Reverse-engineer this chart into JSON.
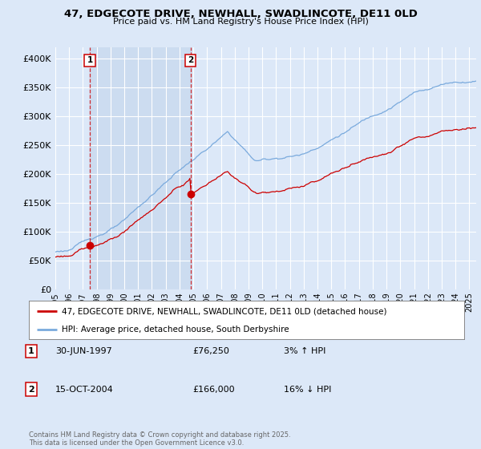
{
  "title_line1": "47, EDGECOTE DRIVE, NEWHALL, SWADLINCOTE, DE11 0LD",
  "title_line2": "Price paid vs. HM Land Registry's House Price Index (HPI)",
  "ylim": [
    0,
    420000
  ],
  "yticks": [
    0,
    50000,
    100000,
    150000,
    200000,
    250000,
    300000,
    350000,
    400000
  ],
  "ytick_labels": [
    "£0",
    "£50K",
    "£100K",
    "£150K",
    "£200K",
    "£250K",
    "£300K",
    "£350K",
    "£400K"
  ],
  "fig_bg": "#dce8f8",
  "plot_bg": "#dce8f8",
  "shade_bg": "#ccdcf0",
  "grid_color": "#ffffff",
  "line1_color": "#cc0000",
  "line2_color": "#7aaadd",
  "legend_label1": "47, EDGECOTE DRIVE, NEWHALL, SWADLINCOTE, DE11 0LD (detached house)",
  "legend_label2": "HPI: Average price, detached house, South Derbyshire",
  "annotation1_date": "30-JUN-1997",
  "annotation1_price": "£76,250",
  "annotation1_hpi": "3% ↑ HPI",
  "annotation2_date": "15-OCT-2004",
  "annotation2_price": "£166,000",
  "annotation2_hpi": "16% ↓ HPI",
  "footer": "Contains HM Land Registry data © Crown copyright and database right 2025.\nThis data is licensed under the Open Government Licence v3.0.",
  "sale1_x": 1997.5,
  "sale1_y": 76250,
  "sale2_x": 2004.79,
  "sale2_y": 166000,
  "xmin": 1995.0,
  "xmax": 2025.5
}
